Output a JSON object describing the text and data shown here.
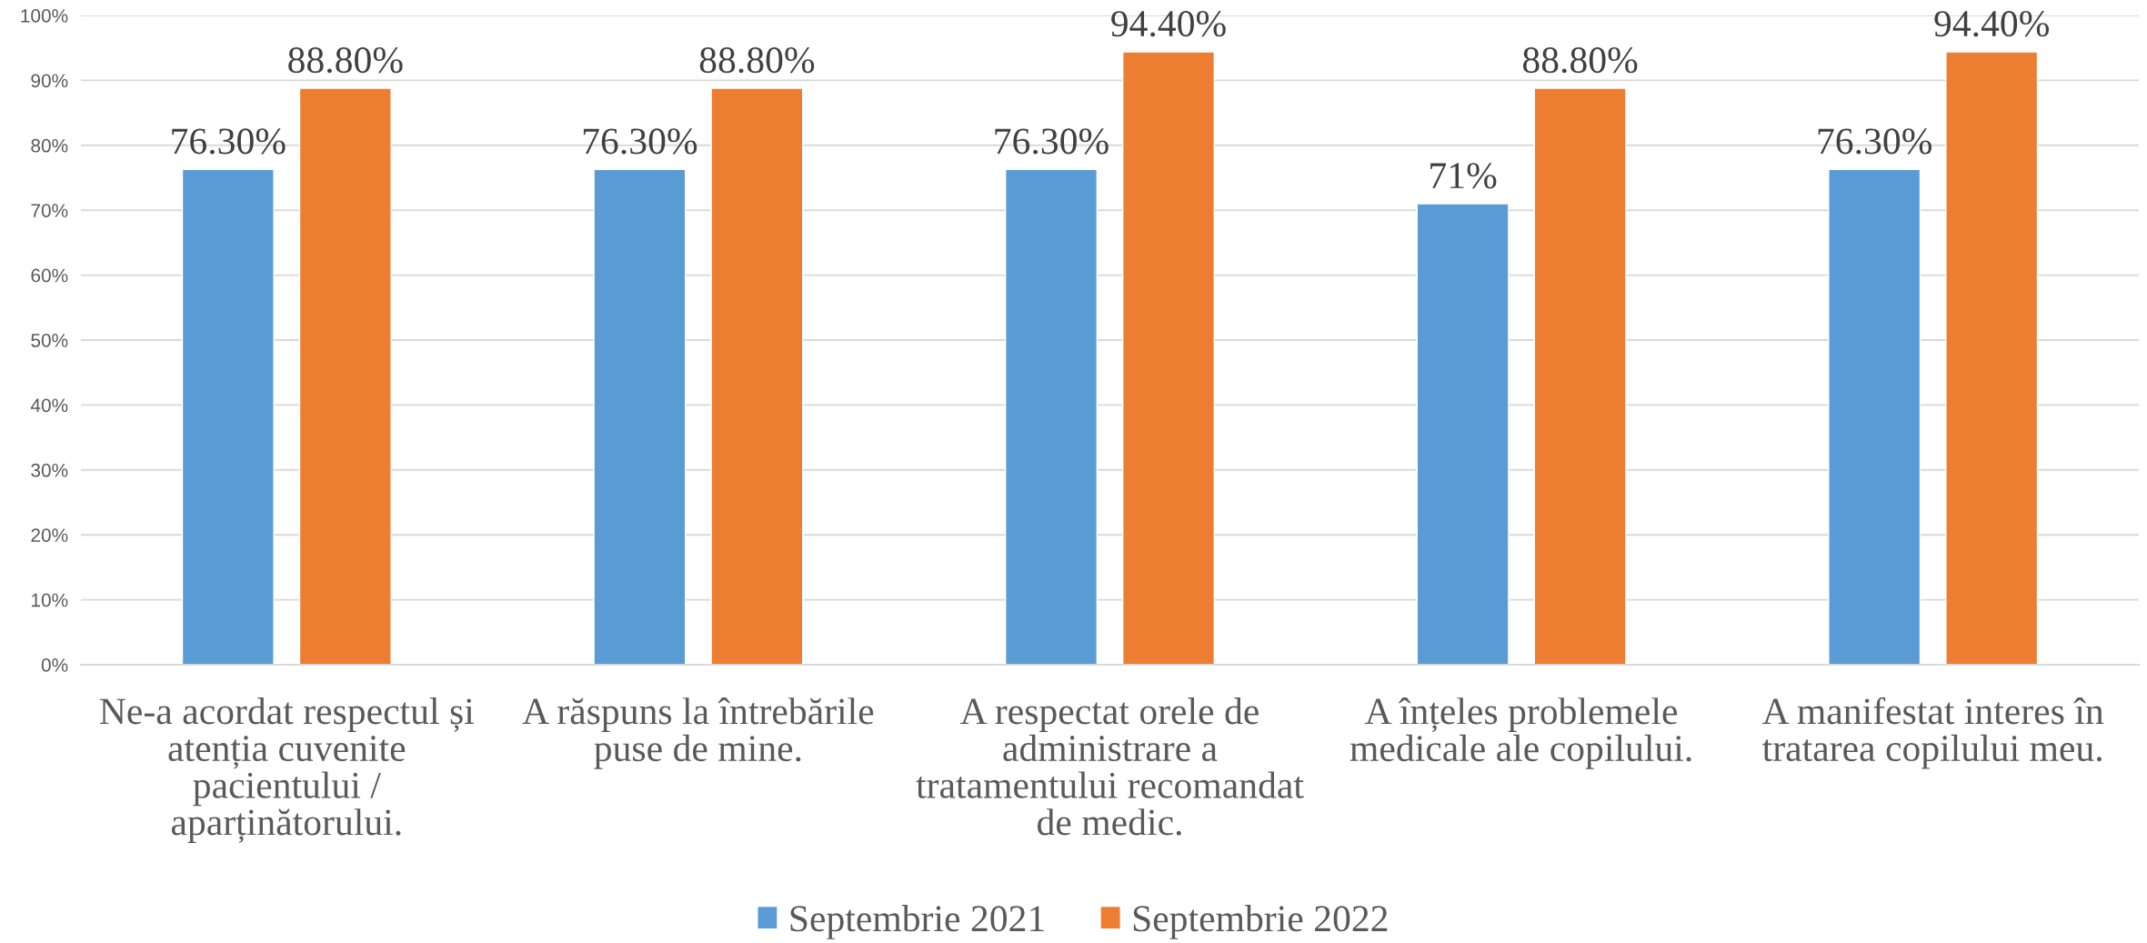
{
  "chart_data": {
    "type": "bar",
    "categories": [
      "Ne-a acordat respectul și atenția cuvenite pacientului / aparținătorului.",
      "A răspuns la întrebările puse de mine.",
      "A respectat orele de administrare a tratamentului recomandat de medic.",
      "A înțeles problemele medicale ale copilului.",
      "A manifestat interes în tratarea copilului meu."
    ],
    "series": [
      {
        "name": "Septembrie 2021",
        "color": "#5b9bd5",
        "values": [
          76.3,
          76.3,
          76.3,
          71,
          76.3
        ],
        "value_labels": [
          "76.30%",
          "76.30%",
          "76.30%",
          "71%",
          "76.30%"
        ]
      },
      {
        "name": "Septembrie 2022",
        "color": "#ed7d31",
        "values": [
          88.8,
          88.8,
          94.4,
          88.8,
          94.4
        ],
        "value_labels": [
          "88.80%",
          "88.80%",
          "94.40%",
          "88.80%",
          "94.40%"
        ]
      }
    ],
    "ylim": [
      0,
      100
    ],
    "yticks": [
      {
        "value": 0,
        "label": "0%"
      },
      {
        "value": 10,
        "label": "10%"
      },
      {
        "value": 20,
        "label": "20%"
      },
      {
        "value": 30,
        "label": "30%"
      },
      {
        "value": 40,
        "label": "40%"
      },
      {
        "value": 50,
        "label": "50%"
      },
      {
        "value": 60,
        "label": "60%"
      },
      {
        "value": 70,
        "label": "70%"
      },
      {
        "value": 80,
        "label": "80%"
      },
      {
        "value": 90,
        "label": "90%"
      },
      {
        "value": 100,
        "label": "100%"
      }
    ],
    "grid": "y",
    "legend": "bottom"
  }
}
